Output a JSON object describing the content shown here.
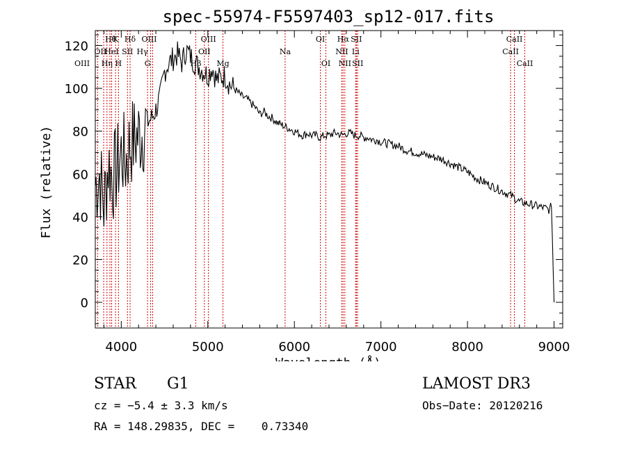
{
  "chart_data": {
    "type": "line",
    "title": "spec-55974-F5597403_sp12-017.fits",
    "xlabel": "Wavelength (Å)",
    "ylabel": "Flux (relative)",
    "xlim": [
      3700,
      9100
    ],
    "ylim": [
      -12,
      127
    ],
    "xticks": [
      4000,
      5000,
      6000,
      7000,
      8000,
      9000
    ],
    "yticks": [
      0,
      20,
      40,
      60,
      80,
      100,
      120
    ],
    "grid": false,
    "series": [
      {
        "name": "flux",
        "x": [
          3700,
          3750,
          3800,
          3850,
          3900,
          3950,
          4000,
          4050,
          4100,
          4150,
          4200,
          4250,
          4300,
          4350,
          4400,
          4450,
          4500,
          4550,
          4600,
          4650,
          4700,
          4750,
          4800,
          4850,
          4900,
          4950,
          5000,
          5050,
          5100,
          5150,
          5200,
          5250,
          5300,
          5350,
          5400,
          5450,
          5500,
          5550,
          5600,
          5650,
          5700,
          5750,
          5800,
          5850,
          5900,
          5950,
          6000,
          6050,
          6100,
          6150,
          6200,
          6250,
          6300,
          6350,
          6400,
          6450,
          6500,
          6550,
          6600,
          6650,
          6700,
          6750,
          6800,
          6850,
          6900,
          6950,
          7000,
          7100,
          7200,
          7300,
          7400,
          7500,
          7600,
          7700,
          7800,
          7900,
          8000,
          8100,
          8200,
          8300,
          8400,
          8500,
          8600,
          8700,
          8800,
          8900,
          8950,
          8970,
          9000
        ],
        "values": [
          55,
          60,
          45,
          65,
          58,
          62,
          70,
          66,
          74,
          76,
          78,
          80,
          84,
          86,
          90,
          96,
          108,
          112,
          114,
          116,
          112,
          118,
          115,
          112,
          110,
          108,
          106,
          110,
          104,
          105,
          106,
          102,
          100,
          98,
          96,
          95,
          93,
          91,
          88,
          89,
          87,
          86,
          84,
          83,
          82,
          81,
          80,
          79,
          78,
          79,
          78,
          78,
          77,
          78,
          78,
          79,
          79,
          78,
          79,
          79,
          78,
          78,
          77,
          77,
          76,
          76,
          75,
          74,
          73,
          71,
          70,
          69,
          68,
          67,
          65,
          63,
          61,
          58,
          56,
          54,
          52,
          50,
          47,
          46,
          45,
          44,
          43,
          46,
          0
        ]
      }
    ],
    "lines": [
      {
        "name": "Hθ",
        "x": 3797,
        "row": 0,
        "x_offset": 10
      },
      {
        "name": "K",
        "x": 3934,
        "row": 0,
        "x_offset": 0
      },
      {
        "name": "Hδ",
        "x": 4102,
        "row": 0,
        "x_offset": 0
      },
      {
        "name": "OIII",
        "x": 4363,
        "row": 0,
        "x_offset": -5
      },
      {
        "name": "OIII",
        "x": 5007,
        "row": 0,
        "x_offset": 0
      },
      {
        "name": "OI",
        "x": 6300,
        "row": 0,
        "x_offset": 0
      },
      {
        "name": "Hα",
        "x": 6563,
        "row": 0,
        "x_offset": 0
      },
      {
        "name": "SII",
        "x": 6716,
        "row": 0,
        "x_offset": 0
      },
      {
        "name": "CaII",
        "x": 8542,
        "row": 0,
        "x_offset": 0
      },
      {
        "name": "OII",
        "x": 3727,
        "row": 1,
        "x_offset": 4
      },
      {
        "name": "HeI",
        "x": 3889,
        "row": 1,
        "x_offset": 0
      },
      {
        "name": "SII",
        "x": 4072,
        "row": 1,
        "x_offset": 0
      },
      {
        "name": "Hγ",
        "x": 4340,
        "row": 1,
        "x_offset": -12
      },
      {
        "name": "OII",
        "x": 4960,
        "row": 1,
        "x_offset": 0
      },
      {
        "name": "Na",
        "x": 5893,
        "row": 1,
        "x_offset": 0
      },
      {
        "name": "NII",
        "x": 6548,
        "row": 1,
        "x_offset": 0
      },
      {
        "name": "Li",
        "x": 6708,
        "row": 1,
        "x_offset": 0
      },
      {
        "name": "CaII",
        "x": 8498,
        "row": 1,
        "x_offset": 0
      },
      {
        "name": "OIII",
        "x": 3869,
        "row": 2,
        "x_offset": -40
      },
      {
        "name": "Hη",
        "x": 3835,
        "row": 2,
        "x_offset": 0
      },
      {
        "name": "H",
        "x": 3968,
        "row": 2,
        "x_offset": 0
      },
      {
        "name": "G",
        "x": 4304,
        "row": 2,
        "x_offset": 0
      },
      {
        "name": "Hβ",
        "x": 4861,
        "row": 2,
        "x_offset": 0
      },
      {
        "name": "Mg",
        "x": 5175,
        "row": 2,
        "x_offset": 0
      },
      {
        "name": "OI",
        "x": 6364,
        "row": 2,
        "x_offset": 0
      },
      {
        "name": "NII",
        "x": 6583,
        "row": 2,
        "x_offset": 0
      },
      {
        "name": "SII",
        "x": 6731,
        "row": 2,
        "x_offset": 0
      },
      {
        "name": "CaII",
        "x": 8662,
        "row": 2,
        "x_offset": 0
      }
    ]
  },
  "info": {
    "object_class": "STAR",
    "subclass": "G1",
    "survey": "LAMOST DR3",
    "cz": "cz = −5.4 ± 3.3 km/s",
    "obs_date": "Obs−Date: 20120216",
    "coords": "RA = 148.29835, DEC =    0.73340"
  },
  "colors": {
    "axis": "#000000",
    "spectrum": "#000000",
    "line_marker": "#d00000"
  }
}
